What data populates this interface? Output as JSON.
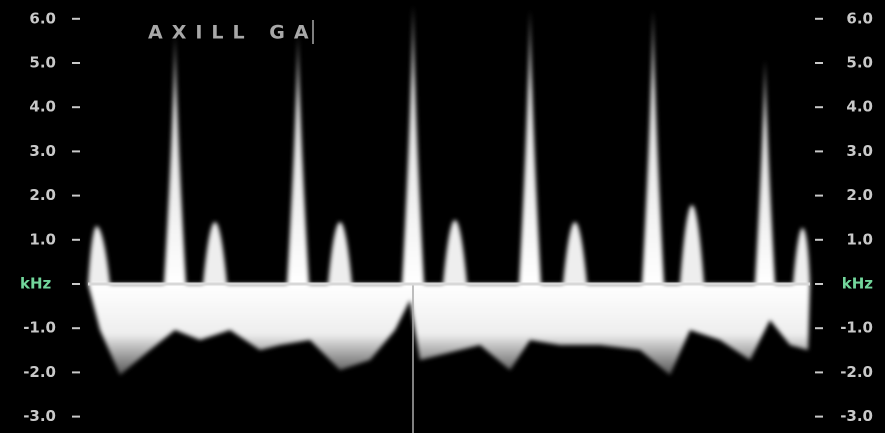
{
  "annotation": "AXILL GA",
  "axis": {
    "unit_left": "kHz",
    "unit_right": "kHz",
    "left_upper": [
      "6.0",
      "5.0",
      "4.0",
      "3.0",
      "2.0",
      "1.0"
    ],
    "left_lower": [
      "-1.0",
      "-2.0",
      "-3.0"
    ],
    "right_upper": [
      "6.0",
      "5.0",
      "4.0",
      "3.0",
      "2.0",
      "1.0"
    ],
    "right_lower": [
      "-1.0",
      "-2.0",
      "-3.0"
    ]
  }
}
